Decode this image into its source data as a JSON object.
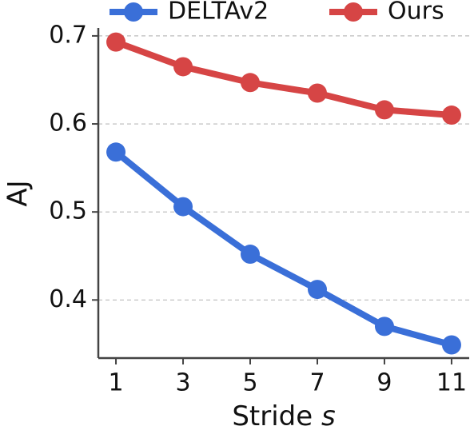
{
  "chart_data": {
    "type": "line",
    "ylabel": "AJ",
    "xlabel": "Stride",
    "xlabel_symbol": "s",
    "x": [
      1,
      3,
      5,
      7,
      9,
      11
    ],
    "series": [
      {
        "name": "DELTAv2",
        "color": "#3a6fd8",
        "values": [
          0.568,
          0.506,
          0.452,
          0.412,
          0.37,
          0.349
        ]
      },
      {
        "name": "Ours",
        "color": "#d64545",
        "values": [
          0.693,
          0.665,
          0.647,
          0.635,
          0.616,
          0.61
        ]
      }
    ],
    "xlim": [
      0.475,
      11.525
    ],
    "xticks": [
      1,
      3,
      5,
      7,
      9,
      11
    ],
    "ylim": [
      0.334,
      0.709
    ],
    "yticks": [
      0.4,
      0.5,
      0.6,
      0.7
    ],
    "grid": true,
    "legend": "top"
  }
}
